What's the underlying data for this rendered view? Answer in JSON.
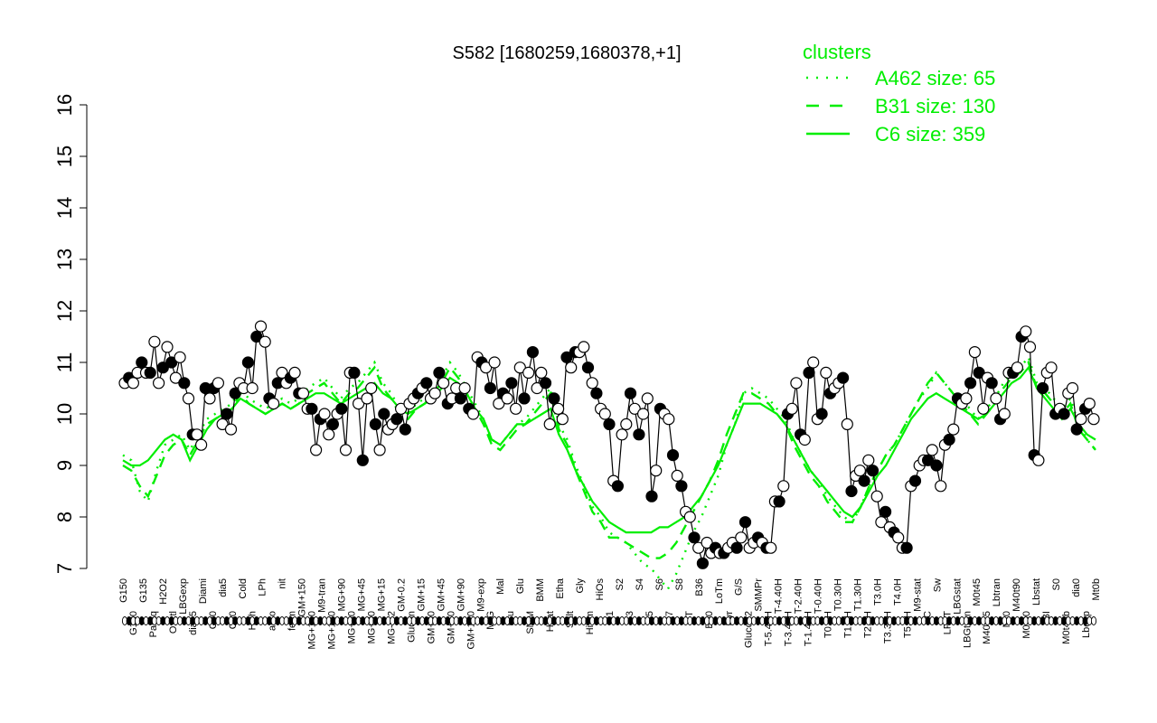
{
  "chart_data": {
    "type": "line",
    "title": "S582 [1680259,1680378,+1]",
    "xlabel": "",
    "ylabel": "",
    "ylim": [
      7,
      16
    ],
    "yticks": [
      7,
      8,
      9,
      10,
      11,
      12,
      13,
      14,
      15,
      16
    ],
    "grid": false,
    "x_tick_labels": [
      "G150",
      "G180",
      "G135",
      "Paraq",
      "H2O2",
      "Oxctl",
      "LBGexp",
      "dia15",
      "Diami",
      "C90",
      "dia5",
      "C30",
      "Cold",
      "HPh",
      "LPh",
      "aero",
      "nit",
      "ferm",
      "GM+150",
      "MG+150",
      "M9-tran",
      "MG+120",
      "MG+90",
      "MG+60",
      "MG+45",
      "MG+30",
      "MG+15",
      "MG-0.2",
      "GM-0.2",
      "Glucon",
      "GM+15",
      "GM+30",
      "GM+45",
      "GM+60",
      "GM+90",
      "GM+120",
      "M9-exp",
      "M/G",
      "Mal",
      "Fru",
      "Glu",
      "SMM",
      "BMM",
      "Heat",
      "Etha",
      "Salt",
      "Gly",
      "HiTm",
      "HiOs",
      "S1",
      "S2",
      "S3",
      "S4",
      "S5",
      "S6",
      "S7",
      "S8",
      "BT",
      "B36",
      "B60",
      "LoTm",
      "Pyr",
      "G/S",
      "Glucon2",
      "SMMPr",
      "T-5.40H",
      "T-4.40H",
      "T-3.40H",
      "T-2.40H",
      "T-1.40H",
      "T-0.40H",
      "T0.0H",
      "T0.30H",
      "T1.0H",
      "T1.30H",
      "T2.0H",
      "T3.0H",
      "T3.30H",
      "T4.0H",
      "T5.0H",
      "M9-stat",
      "BC",
      "Sw",
      "LPhT",
      "LBGstat",
      "LBGtran",
      "M0t45",
      "M40t45",
      "Lbtran",
      "Mt0",
      "M40t90",
      "M0t90",
      "Lbstat",
      "BI",
      "S0",
      "M0t45b",
      "dia0",
      "Lbexp",
      "Mt0b"
    ],
    "legend": {
      "title": "clusters",
      "placement": "top-right",
      "entries": [
        {
          "label": "A462 size: 65",
          "style": "dotted"
        },
        {
          "label": "B31 size: 130",
          "style": "dashed"
        },
        {
          "label": "C6 size: 359",
          "style": "solid"
        }
      ]
    },
    "colors": {
      "cluster": "#00ee00",
      "points": "#000000"
    },
    "points_y": [
      10.6,
      10.7,
      10.6,
      10.8,
      11.0,
      10.8,
      10.8,
      11.4,
      10.6,
      10.9,
      11.3,
      11.0,
      10.7,
      11.1,
      10.6,
      10.3,
      9.6,
      9.6,
      9.4,
      10.5,
      10.3,
      10.5,
      10.6,
      9.8,
      10.0,
      9.7,
      10.4,
      10.6,
      10.5,
      11.0,
      10.5,
      11.5,
      11.7,
      11.4,
      10.3,
      10.2,
      10.6,
      10.8,
      10.6,
      10.7,
      10.8,
      10.4,
      10.4,
      10.1,
      10.1,
      9.3,
      9.9,
      10.0,
      9.6,
      9.8,
      10.0,
      10.1,
      9.3,
      10.8,
      10.8,
      10.2,
      9.1,
      10.3,
      10.5,
      9.8,
      9.3,
      10.0,
      9.7,
      9.8,
      9.9,
      10.1,
      9.7,
      10.2,
      10.3,
      10.4,
      10.5,
      10.6,
      10.3,
      10.4,
      10.8,
      10.6,
      10.2,
      10.3,
      10.5,
      10.3,
      10.5,
      10.1,
      10.0,
      11.1,
      11.0,
      10.9,
      10.5,
      11.0,
      10.2,
      10.4,
      10.3,
      10.6,
      10.1,
      10.9,
      10.3,
      10.8,
      11.2,
      10.5,
      10.8,
      10.6,
      9.8,
      10.3,
      10.1,
      9.9,
      11.1,
      10.9,
      11.2,
      11.2,
      11.3,
      10.9,
      10.6,
      10.4,
      10.1,
      10.0,
      9.8,
      8.7,
      8.6,
      9.6,
      9.8,
      10.4,
      10.1,
      9.6,
      10.0,
      10.3,
      8.4,
      8.9,
      10.1,
      10.0,
      9.9,
      9.2,
      8.8,
      8.6,
      8.1,
      8.0,
      7.6,
      7.4,
      7.1,
      7.5,
      7.3,
      7.4,
      7.3,
      7.3,
      7.4,
      7.5,
      7.4,
      7.6,
      7.9,
      7.4,
      7.5,
      7.6,
      7.5,
      7.4,
      7.4,
      8.3,
      8.3,
      8.6,
      10.0,
      10.1,
      10.6,
      9.6,
      9.5,
      10.8,
      11.0,
      9.9,
      10.0,
      10.8,
      10.4,
      10.5,
      10.6,
      10.7,
      9.8,
      8.5,
      8.8,
      8.9,
      8.7,
      9.1,
      8.9,
      8.4,
      7.9,
      8.1,
      7.8,
      7.7,
      7.6,
      7.4,
      7.4,
      8.6,
      8.7,
      9.0,
      9.1,
      9.1,
      9.3,
      9.0,
      8.6,
      9.4,
      9.5,
      9.7,
      10.3,
      10.2,
      10.3,
      10.6,
      11.2,
      10.8,
      10.1,
      10.7,
      10.6,
      10.3,
      9.9,
      10.0,
      10.8,
      10.8,
      10.9,
      11.5,
      11.6,
      11.3,
      9.2,
      9.1,
      10.5,
      10.8,
      10.9,
      10.0,
      10.1,
      10.0,
      10.4,
      10.5,
      9.7,
      9.9,
      10.1,
      10.2,
      9.9
    ],
    "series": [
      {
        "name": "A462 size: 65",
        "style": "dotted",
        "values": [
          9.2,
          9.1,
          8.5,
          8.3,
          8.9,
          9.4,
          9.5,
          9.6,
          9.3,
          9.6,
          9.9,
          10.0,
          10.1,
          10.2,
          10.5,
          10.3,
          10.2,
          10.1,
          10.2,
          10.3,
          10.2,
          10.3,
          10.5,
          10.6,
          10.7,
          10.5,
          10.3,
          10.5,
          10.6,
          10.8,
          11.0,
          10.6,
          10.4,
          10.1,
          10.0,
          10.2,
          10.3,
          10.5,
          10.7,
          11.0,
          10.8,
          10.5,
          10.2,
          9.9,
          9.5,
          9.4,
          9.6,
          9.8,
          9.9,
          10.1,
          10.3,
          10.5,
          9.8,
          9.5,
          9.0,
          8.6,
          8.2,
          8.0,
          7.7,
          7.6,
          7.5,
          7.3,
          7.1,
          7.0,
          6.8,
          6.6,
          6.9,
          7.3,
          7.7,
          8.0,
          8.4,
          8.8,
          9.4,
          9.8,
          10.4,
          10.5,
          10.4,
          10.3,
          10.1,
          9.9,
          9.5,
          9.2,
          8.9,
          8.7,
          8.4,
          8.2,
          8.0,
          7.9,
          8.2,
          8.6,
          8.9,
          9.2,
          9.4,
          9.7,
          10.0,
          10.3,
          10.5,
          10.8,
          10.6,
          10.4,
          10.3,
          10.1,
          9.9,
          10.1,
          10.3,
          10.6,
          10.8,
          10.9,
          11.1,
          10.6,
          10.5,
          10.3,
          10.1,
          10.3,
          9.8,
          9.5,
          9.3
        ]
      },
      {
        "name": "B31 size: 130",
        "style": "dashed",
        "values": [
          9.0,
          8.9,
          8.6,
          8.4,
          8.8,
          9.2,
          9.4,
          9.5,
          9.2,
          9.5,
          9.8,
          9.9,
          10.0,
          10.1,
          10.4,
          10.2,
          10.1,
          10.0,
          10.1,
          10.2,
          10.1,
          10.2,
          10.4,
          10.5,
          10.6,
          10.4,
          10.2,
          10.4,
          10.5,
          10.7,
          10.9,
          10.5,
          10.3,
          10.0,
          9.9,
          10.1,
          10.2,
          10.4,
          10.6,
          10.9,
          10.7,
          10.4,
          10.1,
          9.8,
          9.4,
          9.3,
          9.5,
          9.7,
          9.8,
          10.0,
          10.2,
          10.4,
          9.7,
          9.4,
          8.9,
          8.5,
          8.1,
          7.9,
          7.6,
          7.6,
          7.5,
          7.4,
          7.3,
          7.2,
          7.2,
          7.3,
          7.5,
          7.8,
          8.1,
          8.4,
          8.7,
          9.1,
          9.6,
          10.0,
          10.4,
          10.4,
          10.3,
          10.2,
          10.0,
          9.8,
          9.4,
          9.1,
          8.8,
          8.6,
          8.3,
          8.1,
          7.9,
          7.9,
          8.2,
          8.6,
          8.9,
          9.2,
          9.4,
          9.7,
          10.0,
          10.3,
          10.6,
          10.8,
          10.6,
          10.4,
          10.2,
          10.0,
          9.8,
          10.0,
          10.2,
          10.5,
          10.7,
          10.8,
          11.0,
          10.5,
          10.4,
          10.2,
          10.0,
          10.2,
          9.7,
          9.5,
          9.3
        ]
      },
      {
        "name": "C6 size: 359",
        "style": "solid",
        "values": [
          9.1,
          9.0,
          9.0,
          9.1,
          9.3,
          9.5,
          9.6,
          9.5,
          9.1,
          9.4,
          9.7,
          9.9,
          10.0,
          10.1,
          10.3,
          10.2,
          10.1,
          10.0,
          10.1,
          10.2,
          10.1,
          10.2,
          10.3,
          10.4,
          10.4,
          10.3,
          10.2,
          10.3,
          10.4,
          10.5,
          10.6,
          10.4,
          10.3,
          10.1,
          10.0,
          10.1,
          10.2,
          10.3,
          10.5,
          10.7,
          10.6,
          10.4,
          10.1,
          9.9,
          9.5,
          9.4,
          9.6,
          9.8,
          9.8,
          9.9,
          10.0,
          10.1,
          9.6,
          9.3,
          8.9,
          8.6,
          8.3,
          8.1,
          7.9,
          7.8,
          7.7,
          7.7,
          7.7,
          7.7,
          7.8,
          7.8,
          7.9,
          8.0,
          8.2,
          8.4,
          8.7,
          9.0,
          9.4,
          9.8,
          10.2,
          10.2,
          10.2,
          10.1,
          10.0,
          9.8,
          9.5,
          9.2,
          8.9,
          8.7,
          8.5,
          8.3,
          8.1,
          8.0,
          8.2,
          8.5,
          8.8,
          9.0,
          9.3,
          9.6,
          9.9,
          10.1,
          10.3,
          10.4,
          10.3,
          10.2,
          10.1,
          10.0,
          9.9,
          10.0,
          10.2,
          10.4,
          10.6,
          10.7,
          10.9,
          10.5,
          10.3,
          10.1,
          9.9,
          10.1,
          9.8,
          9.6,
          9.5
        ]
      }
    ]
  }
}
